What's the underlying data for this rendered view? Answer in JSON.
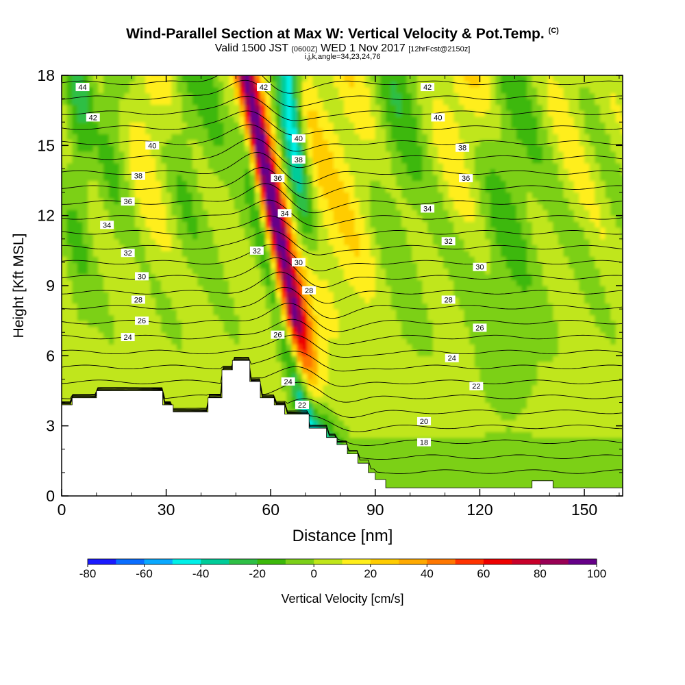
{
  "title": "Wind-Parallel Section at Max W: Vertical Velocity & Pot.Temp.",
  "title_mark": "(C)",
  "subtitle_main": "Valid 1500 JST",
  "subtitle_utc": "(0600Z)",
  "subtitle_date": "WED 1 Nov 2017",
  "subtitle_fcst": "[12hrFcst@2150z]",
  "subtitle_ijk": "i,j,k,angle=34,23,24,76",
  "chart_data": {
    "type": "heatmap",
    "xlabel": "Distance [nm]",
    "ylabel": "Height [Kft MSL]",
    "xlim": [
      0,
      161
    ],
    "ylim": [
      0,
      18
    ],
    "x_ticks": [
      0,
      30,
      60,
      90,
      120,
      150
    ],
    "y_ticks": [
      0,
      3,
      6,
      9,
      12,
      15,
      18
    ],
    "colorbar": {
      "label": "Vertical Velocity [cm/s]",
      "range": [
        -80,
        100
      ],
      "step": 10,
      "tick_values": [
        -80,
        -60,
        -40,
        -20,
        0,
        20,
        40,
        60,
        80,
        100
      ],
      "colors": [
        "#1a1aff",
        "#0a6dff",
        "#0aa9ff",
        "#00f0e8",
        "#00cc99",
        "#2ebf45",
        "#3cb80a",
        "#7cd018",
        "#c0e61a",
        "#ffee1a",
        "#ffcc00",
        "#ffaa00",
        "#ff7700",
        "#ff3300",
        "#ee0000",
        "#c8002a",
        "#990055",
        "#660088"
      ]
    },
    "terrain_profile": {
      "x": [
        0,
        3,
        3,
        10,
        10,
        29,
        29,
        32,
        32,
        42,
        42,
        46,
        46,
        49,
        49,
        54,
        54,
        57,
        57,
        61,
        61,
        64,
        64,
        71,
        71,
        76,
        76,
        79,
        79,
        82,
        82,
        85,
        85,
        88,
        88,
        90,
        90,
        93,
        93,
        135,
        135,
        141,
        141,
        161
      ],
      "y": [
        3.9,
        3.9,
        4.2,
        4.2,
        4.5,
        4.5,
        3.9,
        3.9,
        3.6,
        3.6,
        4.2,
        4.2,
        5.4,
        5.4,
        5.8,
        5.8,
        4.9,
        4.9,
        4.2,
        4.2,
        3.9,
        3.9,
        3.5,
        3.5,
        2.9,
        2.9,
        2.5,
        2.5,
        2.2,
        2.2,
        1.8,
        1.8,
        1.4,
        1.4,
        1.0,
        1.0,
        0.7,
        0.7,
        0.35,
        0.35,
        0.65,
        0.65,
        0.35,
        0.35
      ]
    },
    "theta_contour_labels": [
      {
        "value": 44,
        "x": 6,
        "y": 17.5
      },
      {
        "value": 42,
        "x": 9,
        "y": 16.2
      },
      {
        "value": 40,
        "x": 26,
        "y": 15.0
      },
      {
        "value": 38,
        "x": 22,
        "y": 13.7
      },
      {
        "value": 36,
        "x": 19,
        "y": 12.6
      },
      {
        "value": 34,
        "x": 13,
        "y": 11.6
      },
      {
        "value": 32,
        "x": 19,
        "y": 10.4
      },
      {
        "value": 30,
        "x": 23,
        "y": 9.4
      },
      {
        "value": 28,
        "x": 22,
        "y": 8.4
      },
      {
        "value": 26,
        "x": 23,
        "y": 7.5
      },
      {
        "value": 24,
        "x": 19,
        "y": 6.8
      },
      {
        "value": 42,
        "x": 58,
        "y": 17.5
      },
      {
        "value": 40,
        "x": 68,
        "y": 15.3
      },
      {
        "value": 38,
        "x": 68,
        "y": 14.4
      },
      {
        "value": 36,
        "x": 62,
        "y": 13.6
      },
      {
        "value": 34,
        "x": 64,
        "y": 12.1
      },
      {
        "value": 32,
        "x": 56,
        "y": 10.5
      },
      {
        "value": 30,
        "x": 68,
        "y": 10.0
      },
      {
        "value": 28,
        "x": 71,
        "y": 8.8
      },
      {
        "value": 26,
        "x": 62,
        "y": 6.9
      },
      {
        "value": 24,
        "x": 65,
        "y": 4.9
      },
      {
        "value": 22,
        "x": 69,
        "y": 3.9
      },
      {
        "value": 42,
        "x": 105,
        "y": 17.5
      },
      {
        "value": 40,
        "x": 108,
        "y": 16.2
      },
      {
        "value": 38,
        "x": 115,
        "y": 14.9
      },
      {
        "value": 36,
        "x": 116,
        "y": 13.6
      },
      {
        "value": 34,
        "x": 105,
        "y": 12.3
      },
      {
        "value": 32,
        "x": 111,
        "y": 10.9
      },
      {
        "value": 30,
        "x": 120,
        "y": 9.8
      },
      {
        "value": 28,
        "x": 111,
        "y": 8.4
      },
      {
        "value": 26,
        "x": 120,
        "y": 7.2
      },
      {
        "value": 24,
        "x": 112,
        "y": 5.9
      },
      {
        "value": 22,
        "x": 119,
        "y": 4.7
      },
      {
        "value": 20,
        "x": 104,
        "y": 3.2
      },
      {
        "value": 18,
        "x": 104,
        "y": 2.3
      }
    ]
  }
}
